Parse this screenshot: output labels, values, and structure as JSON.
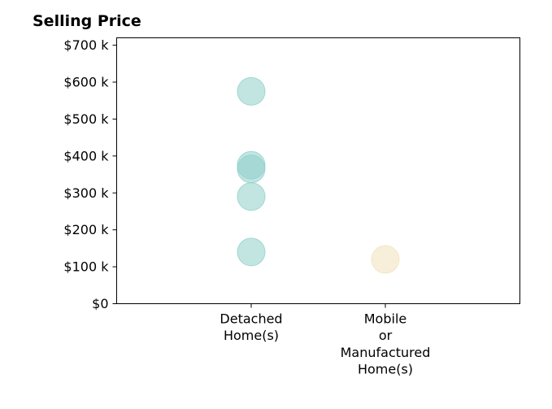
{
  "chart_data": {
    "type": "scatter",
    "title": "Selling Price",
    "xlabel": "",
    "ylabel": "",
    "categories": [
      [
        "Detached",
        "Home(s)"
      ],
      [
        "Mobile",
        "or",
        "Manufactured",
        "Home(s)"
      ]
    ],
    "ylim": [
      0,
      720000
    ],
    "yticks": [
      {
        "value": 0,
        "label": "$0"
      },
      {
        "value": 100000,
        "label": "$100 k"
      },
      {
        "value": 200000,
        "label": "$200 k"
      },
      {
        "value": 300000,
        "label": "$300 k"
      },
      {
        "value": 400000,
        "label": "$400 k"
      },
      {
        "value": 500000,
        "label": "$500 k"
      },
      {
        "value": 600000,
        "label": "$600 k"
      },
      {
        "value": 700000,
        "label": "$700 k"
      }
    ],
    "grid": false,
    "series": [
      {
        "category_index": 0,
        "color": "#8fcfca",
        "values": [
          575000,
          375000,
          365000,
          290000,
          140000
        ]
      },
      {
        "category_index": 1,
        "color": "#f3e2bb",
        "values": [
          120000
        ]
      }
    ]
  }
}
